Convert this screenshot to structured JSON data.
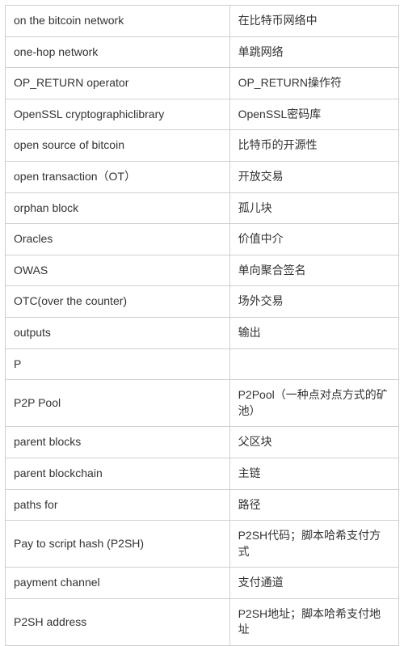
{
  "glossary_table": {
    "type": "table",
    "columns": [
      "english_term",
      "chinese_term"
    ],
    "column_widths": [
      "57%",
      "43%"
    ],
    "border_color": "#d0d0d0",
    "text_color": "#333333",
    "background_color": "#ffffff",
    "font_size": 14,
    "cell_padding": "9px 10px",
    "rows": [
      {
        "en": "on the bitcoin network",
        "zh": "在比特币网络中"
      },
      {
        "en": "one-hop network",
        "zh": "单跳网络"
      },
      {
        "en": "OP_RETURN operator",
        "zh": "OP_RETURN操作符"
      },
      {
        "en": "OpenSSL cryptographiclibrary",
        "zh": "OpenSSL密码库"
      },
      {
        "en": "open source of bitcoin",
        "zh": "比特币的开源性"
      },
      {
        "en": "open transaction（OT）",
        "zh": "开放交易"
      },
      {
        "en": "orphan block",
        "zh": "孤儿块"
      },
      {
        "en": "Oracles",
        "zh": "价值中介"
      },
      {
        "en": "OWAS",
        "zh": "单向聚合签名"
      },
      {
        "en": "OTC(over the counter)",
        "zh": "场外交易"
      },
      {
        "en": "outputs",
        "zh": "输出"
      },
      {
        "en": "P",
        "zh": ""
      },
      {
        "en": "P2P Pool",
        "zh": "P2Pool（一种点对点方式的矿池）"
      },
      {
        "en": "parent blocks",
        "zh": "父区块"
      },
      {
        "en": "parent blockchain",
        "zh": "主链"
      },
      {
        "en": "paths for",
        "zh": "路径"
      },
      {
        "en": "Pay to script hash (P2SH)",
        "zh": "P2SH代码；脚本哈希支付方式"
      },
      {
        "en": "payment channel",
        "zh": "支付通道"
      },
      {
        "en": "P2SH address",
        "zh": "P2SH地址；脚本哈希支付地址"
      }
    ]
  }
}
